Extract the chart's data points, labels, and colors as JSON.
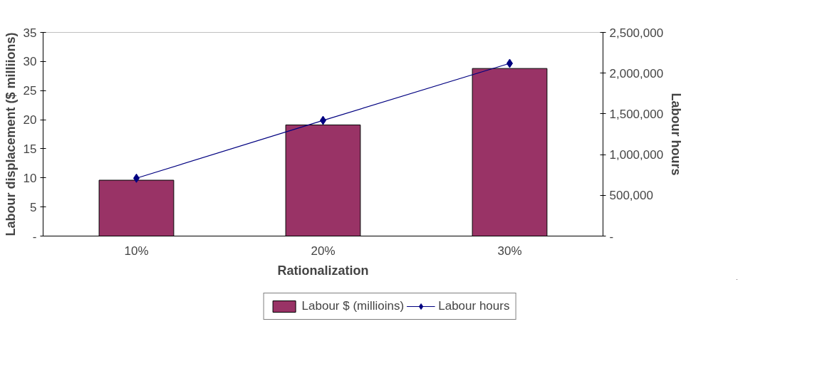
{
  "chart_data": {
    "type": "bar",
    "xlabel": "Rationalization",
    "ylabel": "Labour displacement ($ milliions)",
    "y2label": "Labour hours",
    "categories": [
      "10%",
      "20%",
      "30%"
    ],
    "series": [
      {
        "name": "Labour $ (millioins)",
        "color": "#993366",
        "values": [
          9.6,
          19.1,
          28.8
        ]
      },
      {
        "name": "Labour hours",
        "type": "line",
        "axis": "y2",
        "color": "#000080",
        "marker": "diamond",
        "values": [
          710000,
          1420000,
          2120000
        ]
      }
    ],
    "ylim": [
      0,
      35
    ],
    "yticks": [
      {
        "value": 0,
        "label": "-"
      },
      5,
      10,
      15,
      20,
      25,
      30,
      35
    ],
    "y2lim": [
      0,
      2500000
    ],
    "y2ticks": [
      {
        "value": 0,
        "label": "-"
      },
      {
        "value": 500000,
        "label": "500,000"
      },
      {
        "value": 1000000,
        "label": "1,000,000"
      },
      {
        "value": 1500000,
        "label": "1,500,000"
      },
      {
        "value": 2000000,
        "label": "2,000,000"
      },
      {
        "value": 2500000,
        "label": "2,500,000"
      }
    ],
    "grid": false,
    "legend": "bottom"
  }
}
